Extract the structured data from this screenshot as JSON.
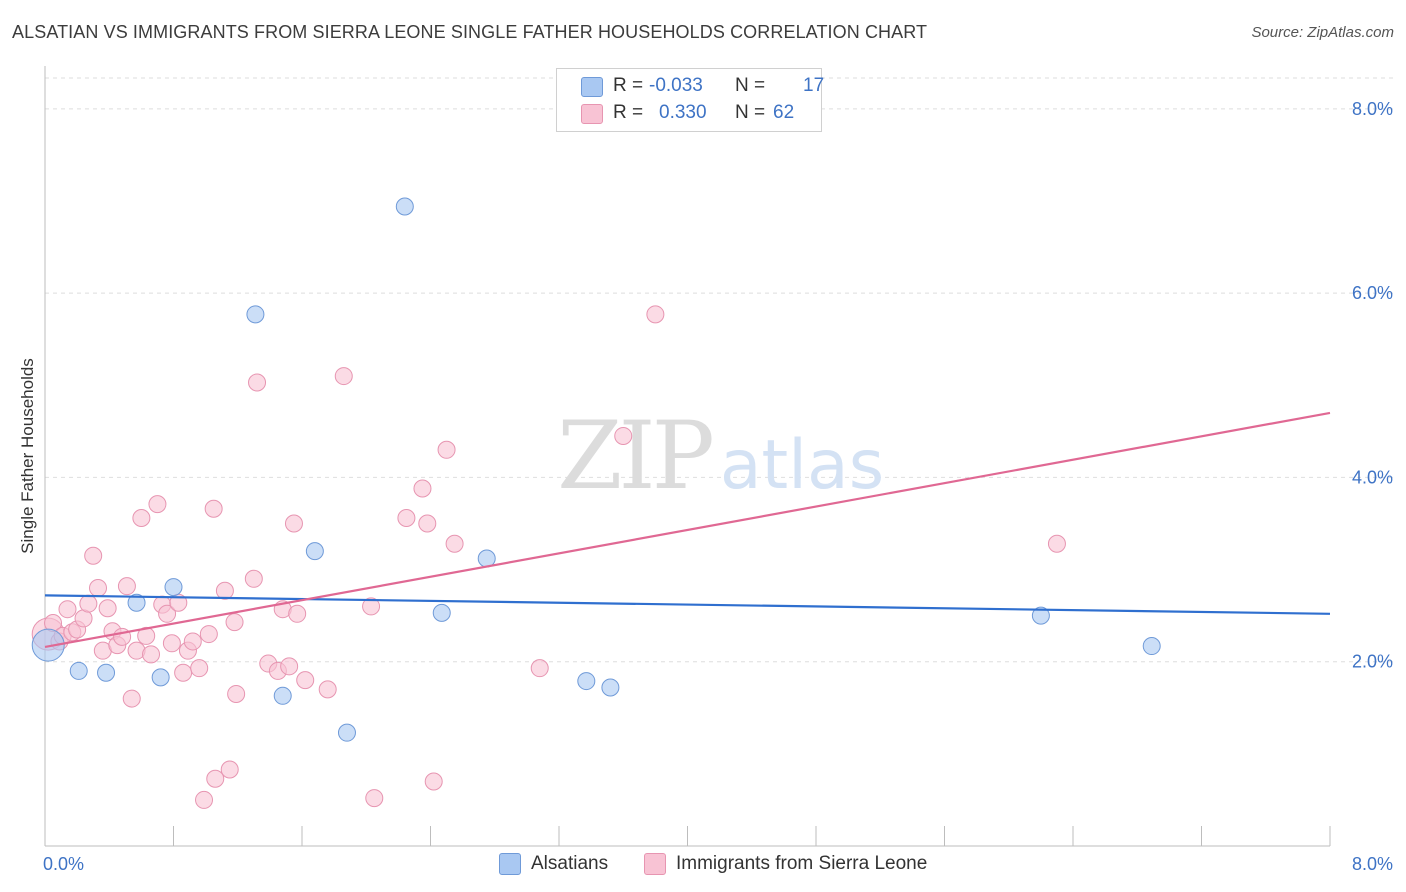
{
  "chart_data": {
    "type": "scatter",
    "title": "ALSATIAN VS IMMIGRANTS FROM SIERRA LEONE SINGLE FATHER HOUSEHOLDS CORRELATION CHART",
    "source": "Source: ZipAtlas.com",
    "ylabel": "Single Father Households",
    "xlim": [
      0,
      8
    ],
    "ylim": [
      0,
      8.4
    ],
    "x_tick_labels": {
      "min": "0.0%",
      "max": "8.0%"
    },
    "y_ticks": [
      {
        "value": 2,
        "label": "2.0%"
      },
      {
        "value": 4,
        "label": "4.0%"
      },
      {
        "value": 6,
        "label": "6.0%"
      },
      {
        "value": 8,
        "label": "8.0%"
      }
    ],
    "grid": true,
    "legend_position": "top-center",
    "watermark": {
      "zip": "ZIP",
      "atlas": "atlas"
    },
    "series": [
      {
        "name": "Alsatians",
        "color": "#a9c8f2",
        "stroke": "#6f9ad8",
        "line_color": "#2f6fcf",
        "stats": {
          "r_label": "R =",
          "r_value": "-0.033",
          "n_label": "N =",
          "n_value": "17"
        },
        "trend": {
          "x": [
            0,
            8
          ],
          "y": [
            2.72,
            2.52
          ]
        },
        "points": [
          {
            "x": 0.02,
            "y": 2.18,
            "big": true
          },
          {
            "x": 0.21,
            "y": 1.9
          },
          {
            "x": 0.38,
            "y": 1.88
          },
          {
            "x": 0.57,
            "y": 2.64
          },
          {
            "x": 0.72,
            "y": 1.83
          },
          {
            "x": 0.8,
            "y": 2.81
          },
          {
            "x": 1.31,
            "y": 5.77
          },
          {
            "x": 1.48,
            "y": 1.63
          },
          {
            "x": 1.68,
            "y": 3.2
          },
          {
            "x": 1.88,
            "y": 1.23
          },
          {
            "x": 2.24,
            "y": 6.94
          },
          {
            "x": 2.47,
            "y": 2.53
          },
          {
            "x": 2.75,
            "y": 3.12
          },
          {
            "x": 3.37,
            "y": 1.79
          },
          {
            "x": 3.52,
            "y": 1.72
          },
          {
            "x": 6.2,
            "y": 2.5
          },
          {
            "x": 6.89,
            "y": 2.17
          }
        ]
      },
      {
        "name": "Immigrants from Sierra Leone",
        "color": "#f8c3d4",
        "stroke": "#e795b1",
        "line_color": "#e06893",
        "stats": {
          "r_label": "R =",
          "r_value": "0.330",
          "n_label": "N =",
          "n_value": "62"
        },
        "trend": {
          "x": [
            0,
            8
          ],
          "y": [
            2.16,
            4.7
          ]
        },
        "points": [
          {
            "x": 0.02,
            "y": 2.3,
            "big": true
          },
          {
            "x": 0.05,
            "y": 2.42
          },
          {
            "x": 0.09,
            "y": 2.22
          },
          {
            "x": 0.11,
            "y": 2.28
          },
          {
            "x": 0.14,
            "y": 2.57
          },
          {
            "x": 0.17,
            "y": 2.32
          },
          {
            "x": 0.2,
            "y": 2.35
          },
          {
            "x": 0.24,
            "y": 2.47
          },
          {
            "x": 0.27,
            "y": 2.63
          },
          {
            "x": 0.3,
            "y": 3.15
          },
          {
            "x": 0.33,
            "y": 2.8
          },
          {
            "x": 0.36,
            "y": 2.12
          },
          {
            "x": 0.39,
            "y": 2.58
          },
          {
            "x": 0.42,
            "y": 2.33
          },
          {
            "x": 0.45,
            "y": 2.18
          },
          {
            "x": 0.48,
            "y": 2.27
          },
          {
            "x": 0.51,
            "y": 2.82
          },
          {
            "x": 0.54,
            "y": 1.6
          },
          {
            "x": 0.57,
            "y": 2.12
          },
          {
            "x": 0.6,
            "y": 3.56
          },
          {
            "x": 0.63,
            "y": 2.28
          },
          {
            "x": 0.66,
            "y": 2.08
          },
          {
            "x": 0.7,
            "y": 3.71
          },
          {
            "x": 0.73,
            "y": 2.62
          },
          {
            "x": 0.76,
            "y": 2.52
          },
          {
            "x": 0.79,
            "y": 2.2
          },
          {
            "x": 0.83,
            "y": 2.64
          },
          {
            "x": 0.86,
            "y": 1.88
          },
          {
            "x": 0.89,
            "y": 2.12
          },
          {
            "x": 0.92,
            "y": 2.22
          },
          {
            "x": 0.96,
            "y": 1.93
          },
          {
            "x": 0.99,
            "y": 0.5
          },
          {
            "x": 1.02,
            "y": 2.3
          },
          {
            "x": 1.05,
            "y": 3.66
          },
          {
            "x": 1.06,
            "y": 0.73
          },
          {
            "x": 1.12,
            "y": 2.77
          },
          {
            "x": 1.15,
            "y": 0.83
          },
          {
            "x": 1.18,
            "y": 2.43
          },
          {
            "x": 1.19,
            "y": 1.65
          },
          {
            "x": 1.3,
            "y": 2.9
          },
          {
            "x": 1.32,
            "y": 5.03
          },
          {
            "x": 1.39,
            "y": 1.98
          },
          {
            "x": 1.45,
            "y": 1.9
          },
          {
            "x": 1.48,
            "y": 2.57
          },
          {
            "x": 1.52,
            "y": 1.95
          },
          {
            "x": 1.55,
            "y": 3.5
          },
          {
            "x": 1.57,
            "y": 2.52
          },
          {
            "x": 1.62,
            "y": 1.8
          },
          {
            "x": 1.76,
            "y": 1.7
          },
          {
            "x": 1.86,
            "y": 5.1
          },
          {
            "x": 2.03,
            "y": 2.6
          },
          {
            "x": 2.05,
            "y": 0.52
          },
          {
            "x": 2.25,
            "y": 3.56
          },
          {
            "x": 2.35,
            "y": 3.88
          },
          {
            "x": 2.38,
            "y": 3.5
          },
          {
            "x": 2.42,
            "y": 0.7
          },
          {
            "x": 2.5,
            "y": 4.3
          },
          {
            "x": 2.55,
            "y": 3.28
          },
          {
            "x": 3.08,
            "y": 1.93
          },
          {
            "x": 3.6,
            "y": 4.45
          },
          {
            "x": 3.8,
            "y": 5.77
          },
          {
            "x": 6.3,
            "y": 3.28
          }
        ]
      }
    ]
  }
}
